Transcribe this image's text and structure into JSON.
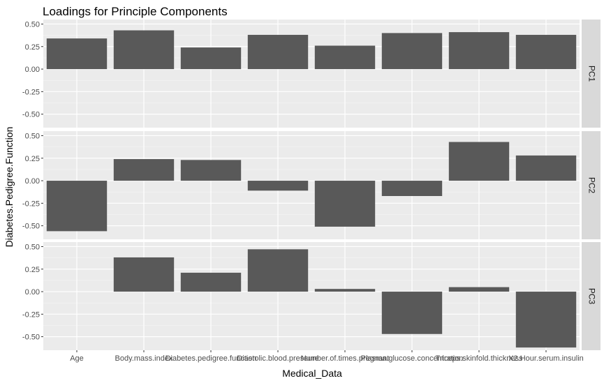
{
  "chart_data": {
    "type": "bar",
    "title": "Loadings for Principle Components",
    "xlabel": "Medical_Data",
    "ylabel": "Diabetes.Pedigree.Function",
    "categories": [
      "Age",
      "Body.mass.index",
      "Diabetes.pedigree.function",
      "Diastolic.blood.pressure",
      "Number.of.times.pregnant",
      "Plasma.glucose.concentration",
      "Triceps.skinfold.thickness",
      "X2.Hour.serum.insulin"
    ],
    "ylim": [
      -0.65,
      0.55
    ],
    "yticks": [
      -0.5,
      -0.25,
      0,
      0.25,
      0.5
    ],
    "ytick_labels": [
      "-0.50",
      "-0.25",
      "0.00",
      "0.25",
      "0.50"
    ],
    "grid": true,
    "facets": [
      {
        "name": "PC1",
        "values": [
          0.34,
          0.43,
          0.24,
          0.38,
          0.26,
          0.4,
          0.41,
          0.38
        ]
      },
      {
        "name": "PC2",
        "values": [
          -0.56,
          0.24,
          0.23,
          -0.11,
          -0.51,
          -0.17,
          0.43,
          0.28
        ]
      },
      {
        "name": "PC3",
        "values": [
          0.0,
          0.38,
          0.21,
          0.47,
          0.03,
          -0.47,
          0.05,
          -0.62
        ]
      }
    ],
    "bar_color": "#595959",
    "panel_color": "#ebebeb",
    "strip_color": "#d9d9d9"
  }
}
